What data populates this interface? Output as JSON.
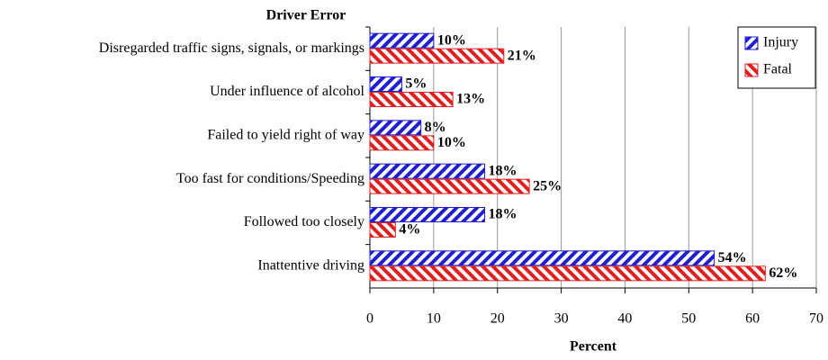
{
  "chart_data": {
    "type": "bar",
    "orientation": "horizontal",
    "title": "Driver Error",
    "xlabel": "Percent",
    "categories": [
      "Disregarded traffic signs, signals, or markings",
      "Under influence of alcohol",
      "Failed to yield right of way",
      "Too fast for conditions/Speeding",
      "Followed too closely",
      "Inattentive driving"
    ],
    "series": [
      {
        "name": "Injury",
        "color": "#1f1fd0",
        "values": [
          10,
          5,
          8,
          18,
          18,
          54
        ],
        "value_labels": [
          "10%",
          "5%",
          "8%",
          "18%",
          "18%",
          "54%"
        ]
      },
      {
        "name": "Fatal",
        "color": "#e02020",
        "values": [
          21,
          13,
          10,
          25,
          4,
          62
        ],
        "value_labels": [
          "21%",
          "13%",
          "10%",
          "25%",
          "4%",
          "62%"
        ]
      }
    ],
    "xlim": [
      0,
      70
    ],
    "xticks": [
      0,
      10,
      20,
      30,
      40,
      50,
      60,
      70
    ],
    "grid": true,
    "legend": "upper right"
  }
}
